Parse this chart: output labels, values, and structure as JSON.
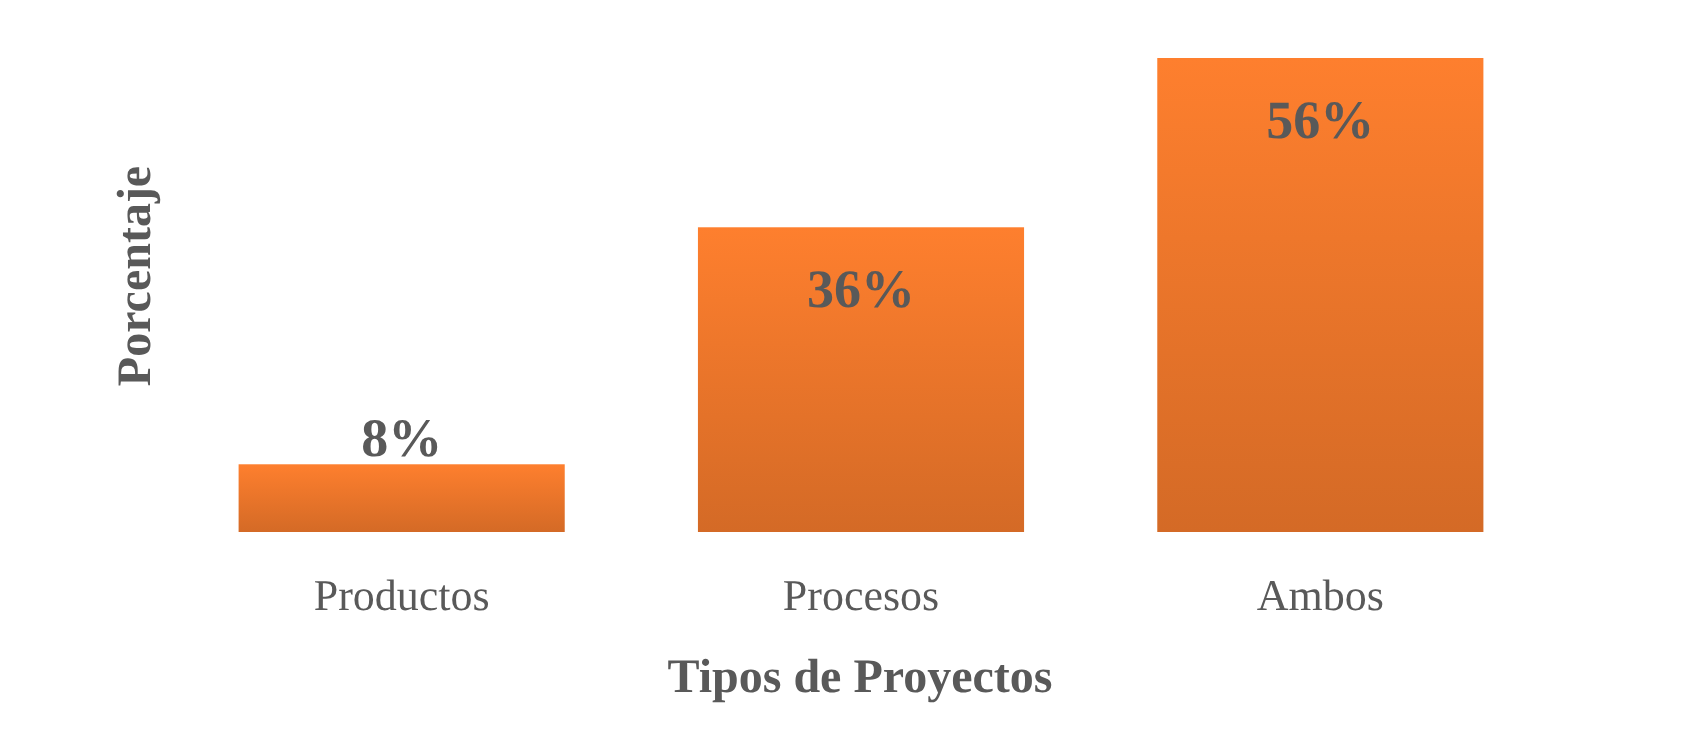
{
  "chart_data": {
    "type": "bar",
    "xlabel": "Tipos de Proyectos",
    "ylabel": "Porcentaje",
    "categories": [
      "Productos",
      "Procesos",
      "Ambos"
    ],
    "values": [
      8,
      36,
      56
    ],
    "value_labels": [
      "8%",
      "36%",
      "56%"
    ],
    "color": "#e8742a"
  }
}
